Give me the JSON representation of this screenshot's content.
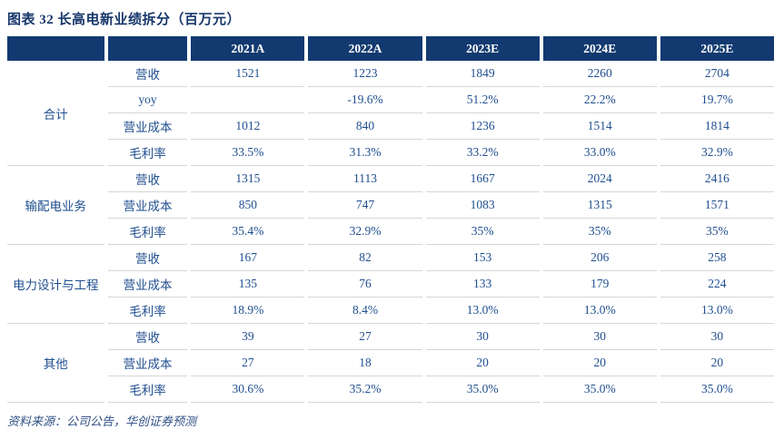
{
  "figure": {
    "title": "图表 32 长高电新业绩拆分（百万元）",
    "source": "资料来源：公司公告，华创证券预测"
  },
  "colors": {
    "header_bg": "#123A70",
    "header_text": "#FFFFFF",
    "body_text": "#1F4E8F",
    "title_text": "#17376B",
    "row_border": "#D6D6D6"
  },
  "table": {
    "columns": [
      "",
      "",
      "2021A",
      "2022A",
      "2023E",
      "2024E",
      "2025E"
    ],
    "groups": [
      {
        "name": "合计",
        "rows": [
          {
            "label": "营收",
            "values": [
              "1521",
              "1223",
              "1849",
              "2260",
              "2704"
            ]
          },
          {
            "label": "yoy",
            "values": [
              "",
              "-19.6%",
              "51.2%",
              "22.2%",
              "19.7%"
            ]
          },
          {
            "label": "营业成本",
            "values": [
              "1012",
              "840",
              "1236",
              "1514",
              "1814"
            ]
          },
          {
            "label": "毛利率",
            "values": [
              "33.5%",
              "31.3%",
              "33.2%",
              "33.0%",
              "32.9%"
            ]
          }
        ]
      },
      {
        "name": "输配电业务",
        "rows": [
          {
            "label": "营收",
            "values": [
              "1315",
              "1113",
              "1667",
              "2024",
              "2416"
            ]
          },
          {
            "label": "营业成本",
            "values": [
              "850",
              "747",
              "1083",
              "1315",
              "1571"
            ]
          },
          {
            "label": "毛利率",
            "values": [
              "35.4%",
              "32.9%",
              "35%",
              "35%",
              "35%"
            ]
          }
        ]
      },
      {
        "name": "电力设计与工程",
        "rows": [
          {
            "label": "营收",
            "values": [
              "167",
              "82",
              "153",
              "206",
              "258"
            ]
          },
          {
            "label": "营业成本",
            "values": [
              "135",
              "76",
              "133",
              "179",
              "224"
            ]
          },
          {
            "label": "毛利率",
            "values": [
              "18.9%",
              "8.4%",
              "13.0%",
              "13.0%",
              "13.0%"
            ]
          }
        ]
      },
      {
        "name": "其他",
        "rows": [
          {
            "label": "营收",
            "values": [
              "39",
              "27",
              "30",
              "30",
              "30"
            ]
          },
          {
            "label": "营业成本",
            "values": [
              "27",
              "18",
              "20",
              "20",
              "20"
            ]
          },
          {
            "label": "毛利率",
            "values": [
              "30.6%",
              "35.2%",
              "35.0%",
              "35.0%",
              "35.0%"
            ]
          }
        ]
      }
    ]
  }
}
